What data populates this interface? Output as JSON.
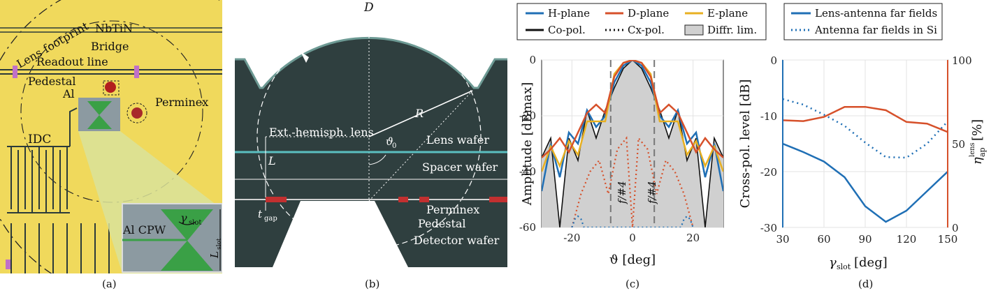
{
  "panel_a": {
    "caption": "(a)",
    "labels": {
      "lens_footprint": "Lens footprint",
      "nbtin": "NbTiN",
      "bridge": "Bridge",
      "readout_line": "Readout line",
      "pedestal": "Pedestal",
      "al": "Al",
      "perminex": "Perminex",
      "idc": "IDC",
      "al_cpw": "Al CPW",
      "gamma_slot": "γ",
      "gamma_slot_sub": "slot",
      "l_slot": "L",
      "l_slot_sub": "slot"
    },
    "colors": {
      "chip": "#f0d95c",
      "metal_line": "#2b3a3a",
      "inset_bg": "#8c9aa1",
      "slot_green": "#3aa046",
      "post_red": "#b21e1e"
    }
  },
  "panel_b": {
    "caption": "(b)",
    "labels": {
      "d": "D",
      "r": "R",
      "theta0": "ϑ",
      "theta0_sub": "0",
      "ext_hemisph_lens": "Ext.-hemisph. lens",
      "l": "L",
      "lens_wafer": "Lens wafer",
      "spacer_wafer": "Spacer wafer",
      "t_gap": "t",
      "t_gap_sub": "gap",
      "perminex": "Perminex",
      "pedestal": "Pedestal",
      "detector_wafer": "Detector wafer"
    },
    "colors": {
      "body": "#2f3f3f",
      "lens_outline": "#6d9a94",
      "cyan_line": "#5bbfc0"
    }
  },
  "panel_c": {
    "caption": "(c)",
    "legend": [
      {
        "label": "H-plane",
        "color": "#1f6fb5",
        "style": "solid"
      },
      {
        "label": "D-plane",
        "color": "#d6502a",
        "style": "solid"
      },
      {
        "label": "E-plane",
        "color": "#e8b021",
        "style": "solid"
      },
      {
        "label": "Co-pol.",
        "color": "#111111",
        "style": "solid"
      },
      {
        "label": "Cx-pol.",
        "color": "#111111",
        "style": "dotted"
      },
      {
        "label": "Diffr. lim.",
        "color": "#d0d0d0",
        "style": "fill"
      }
    ],
    "fnum_label_left": "f/#4",
    "fnum_label_right": "f/#4",
    "chart_data": {
      "type": "line",
      "xlabel": "ϑ [deg]",
      "ylabel": "Amplitude [dBmax]",
      "xlim": [
        -30,
        30
      ],
      "ylim": [
        -60,
        0
      ],
      "xticks": [
        -20,
        0,
        20
      ],
      "yticks": [
        0,
        -20,
        -40,
        -60
      ],
      "series": [
        {
          "name": "H-plane",
          "x": [
            -30,
            -27,
            -24,
            -21,
            -18,
            -15,
            -12,
            -9,
            -6,
            -3,
            0,
            3,
            6,
            9,
            12,
            15,
            18,
            21,
            24,
            27,
            30
          ],
          "values": [
            -47,
            -30,
            -42,
            -26,
            -30,
            -18,
            -24,
            -20,
            -8,
            -2,
            0,
            -2,
            -8,
            -20,
            -24,
            -18,
            -30,
            -26,
            -42,
            -30,
            -47
          ]
        },
        {
          "name": "D-plane",
          "x": [
            -30,
            -27,
            -24,
            -21,
            -18,
            -15,
            -12,
            -9,
            -6,
            -3,
            0,
            3,
            6,
            9,
            12,
            15,
            18,
            21,
            24,
            27,
            30
          ],
          "values": [
            -35,
            -32,
            -28,
            -33,
            -26,
            -19,
            -16,
            -19,
            -6,
            -1,
            0,
            -1,
            -6,
            -19,
            -16,
            -19,
            -26,
            -33,
            -28,
            -32,
            -35
          ]
        },
        {
          "name": "E-plane",
          "x": [
            -30,
            -27,
            -24,
            -21,
            -18,
            -15,
            -12,
            -9,
            -6,
            -3,
            0,
            3,
            6,
            9,
            12,
            15,
            18,
            21,
            24,
            27,
            30
          ],
          "values": [
            -40,
            -31,
            -38,
            -29,
            -34,
            -22,
            -22,
            -22,
            -5,
            -1,
            0,
            -1,
            -5,
            -22,
            -22,
            -22,
            -34,
            -29,
            -38,
            -31,
            -40
          ]
        },
        {
          "name": "Diffr. lim.",
          "x": [
            -30,
            -27,
            -24,
            -21,
            -18,
            -15,
            -12,
            -9,
            -6,
            -3,
            0,
            3,
            6,
            9,
            12,
            15,
            18,
            21,
            24,
            27,
            30
          ],
          "values": [
            -35,
            -28,
            -60,
            -28,
            -36,
            -18,
            -28,
            -18,
            -10,
            -3,
            0,
            -3,
            -10,
            -18,
            -28,
            -18,
            -36,
            -28,
            -60,
            -28,
            -35
          ]
        },
        {
          "name": "Cx-pol. D-plane",
          "x": [
            -20,
            -17,
            -14,
            -11,
            -8,
            -5,
            -2,
            0,
            2,
            5,
            8,
            11,
            14,
            17,
            20
          ],
          "values": [
            -60,
            -48,
            -40,
            -36,
            -48,
            -32,
            -28,
            -60,
            -28,
            -32,
            -48,
            -36,
            -40,
            -48,
            -60
          ]
        },
        {
          "name": "Cx-pol. H-plane",
          "x": [
            -20,
            -19,
            -18,
            -17,
            -16,
            16,
            17,
            18,
            19,
            20
          ],
          "values": [
            -60,
            -57,
            -56,
            -57,
            -60,
            -60,
            -57,
            -56,
            -57,
            -60
          ]
        }
      ]
    }
  },
  "panel_d": {
    "caption": "(d)",
    "legend": [
      {
        "label": "Lens-antenna far fields",
        "color": "#1f6fb5",
        "style": "solid"
      },
      {
        "label": "Antenna far fields in Si",
        "color": "#1f6fb5",
        "style": "dotted"
      }
    ],
    "chart_data": {
      "type": "line",
      "xlabel": "γ",
      "xlabel_sub": "slot",
      "xlabel_unit": " [deg]",
      "ylabel_left": "Cross-pol. level [dB]",
      "ylabel_right": "η",
      "ylabel_right_sub": "ap",
      "ylabel_right_sup": "lens",
      "ylabel_right_unit": " [%]",
      "xlim": [
        30,
        150
      ],
      "ylim_left": [
        -30,
        0
      ],
      "ylim_right": [
        0,
        100
      ],
      "xticks": [
        30,
        60,
        90,
        120,
        150
      ],
      "yticks_left": [
        0,
        -10,
        -20,
        -30
      ],
      "yticks_right": [
        100,
        50,
        0
      ],
      "series": [
        {
          "name": "Lens-antenna far fields",
          "axis": "left",
          "x": [
            30,
            45,
            60,
            75,
            90,
            105,
            120,
            135,
            150
          ],
          "values": [
            -15,
            -16.5,
            -18.2,
            -21,
            -26.2,
            -29,
            -27,
            -23.5,
            -20
          ]
        },
        {
          "name": "Antenna far fields in Si",
          "axis": "left",
          "x": [
            30,
            45,
            60,
            75,
            90,
            105,
            120,
            135,
            150
          ],
          "values": [
            -7,
            -8,
            -9.8,
            -11.8,
            -14.8,
            -17.4,
            -17.5,
            -15,
            -11
          ]
        },
        {
          "name": "η_ap lens",
          "axis": "right",
          "x": [
            30,
            45,
            60,
            75,
            90,
            105,
            120,
            135,
            150
          ],
          "values": [
            64,
            63.5,
            66,
            72,
            72,
            70,
            63,
            62,
            57
          ]
        }
      ]
    }
  }
}
